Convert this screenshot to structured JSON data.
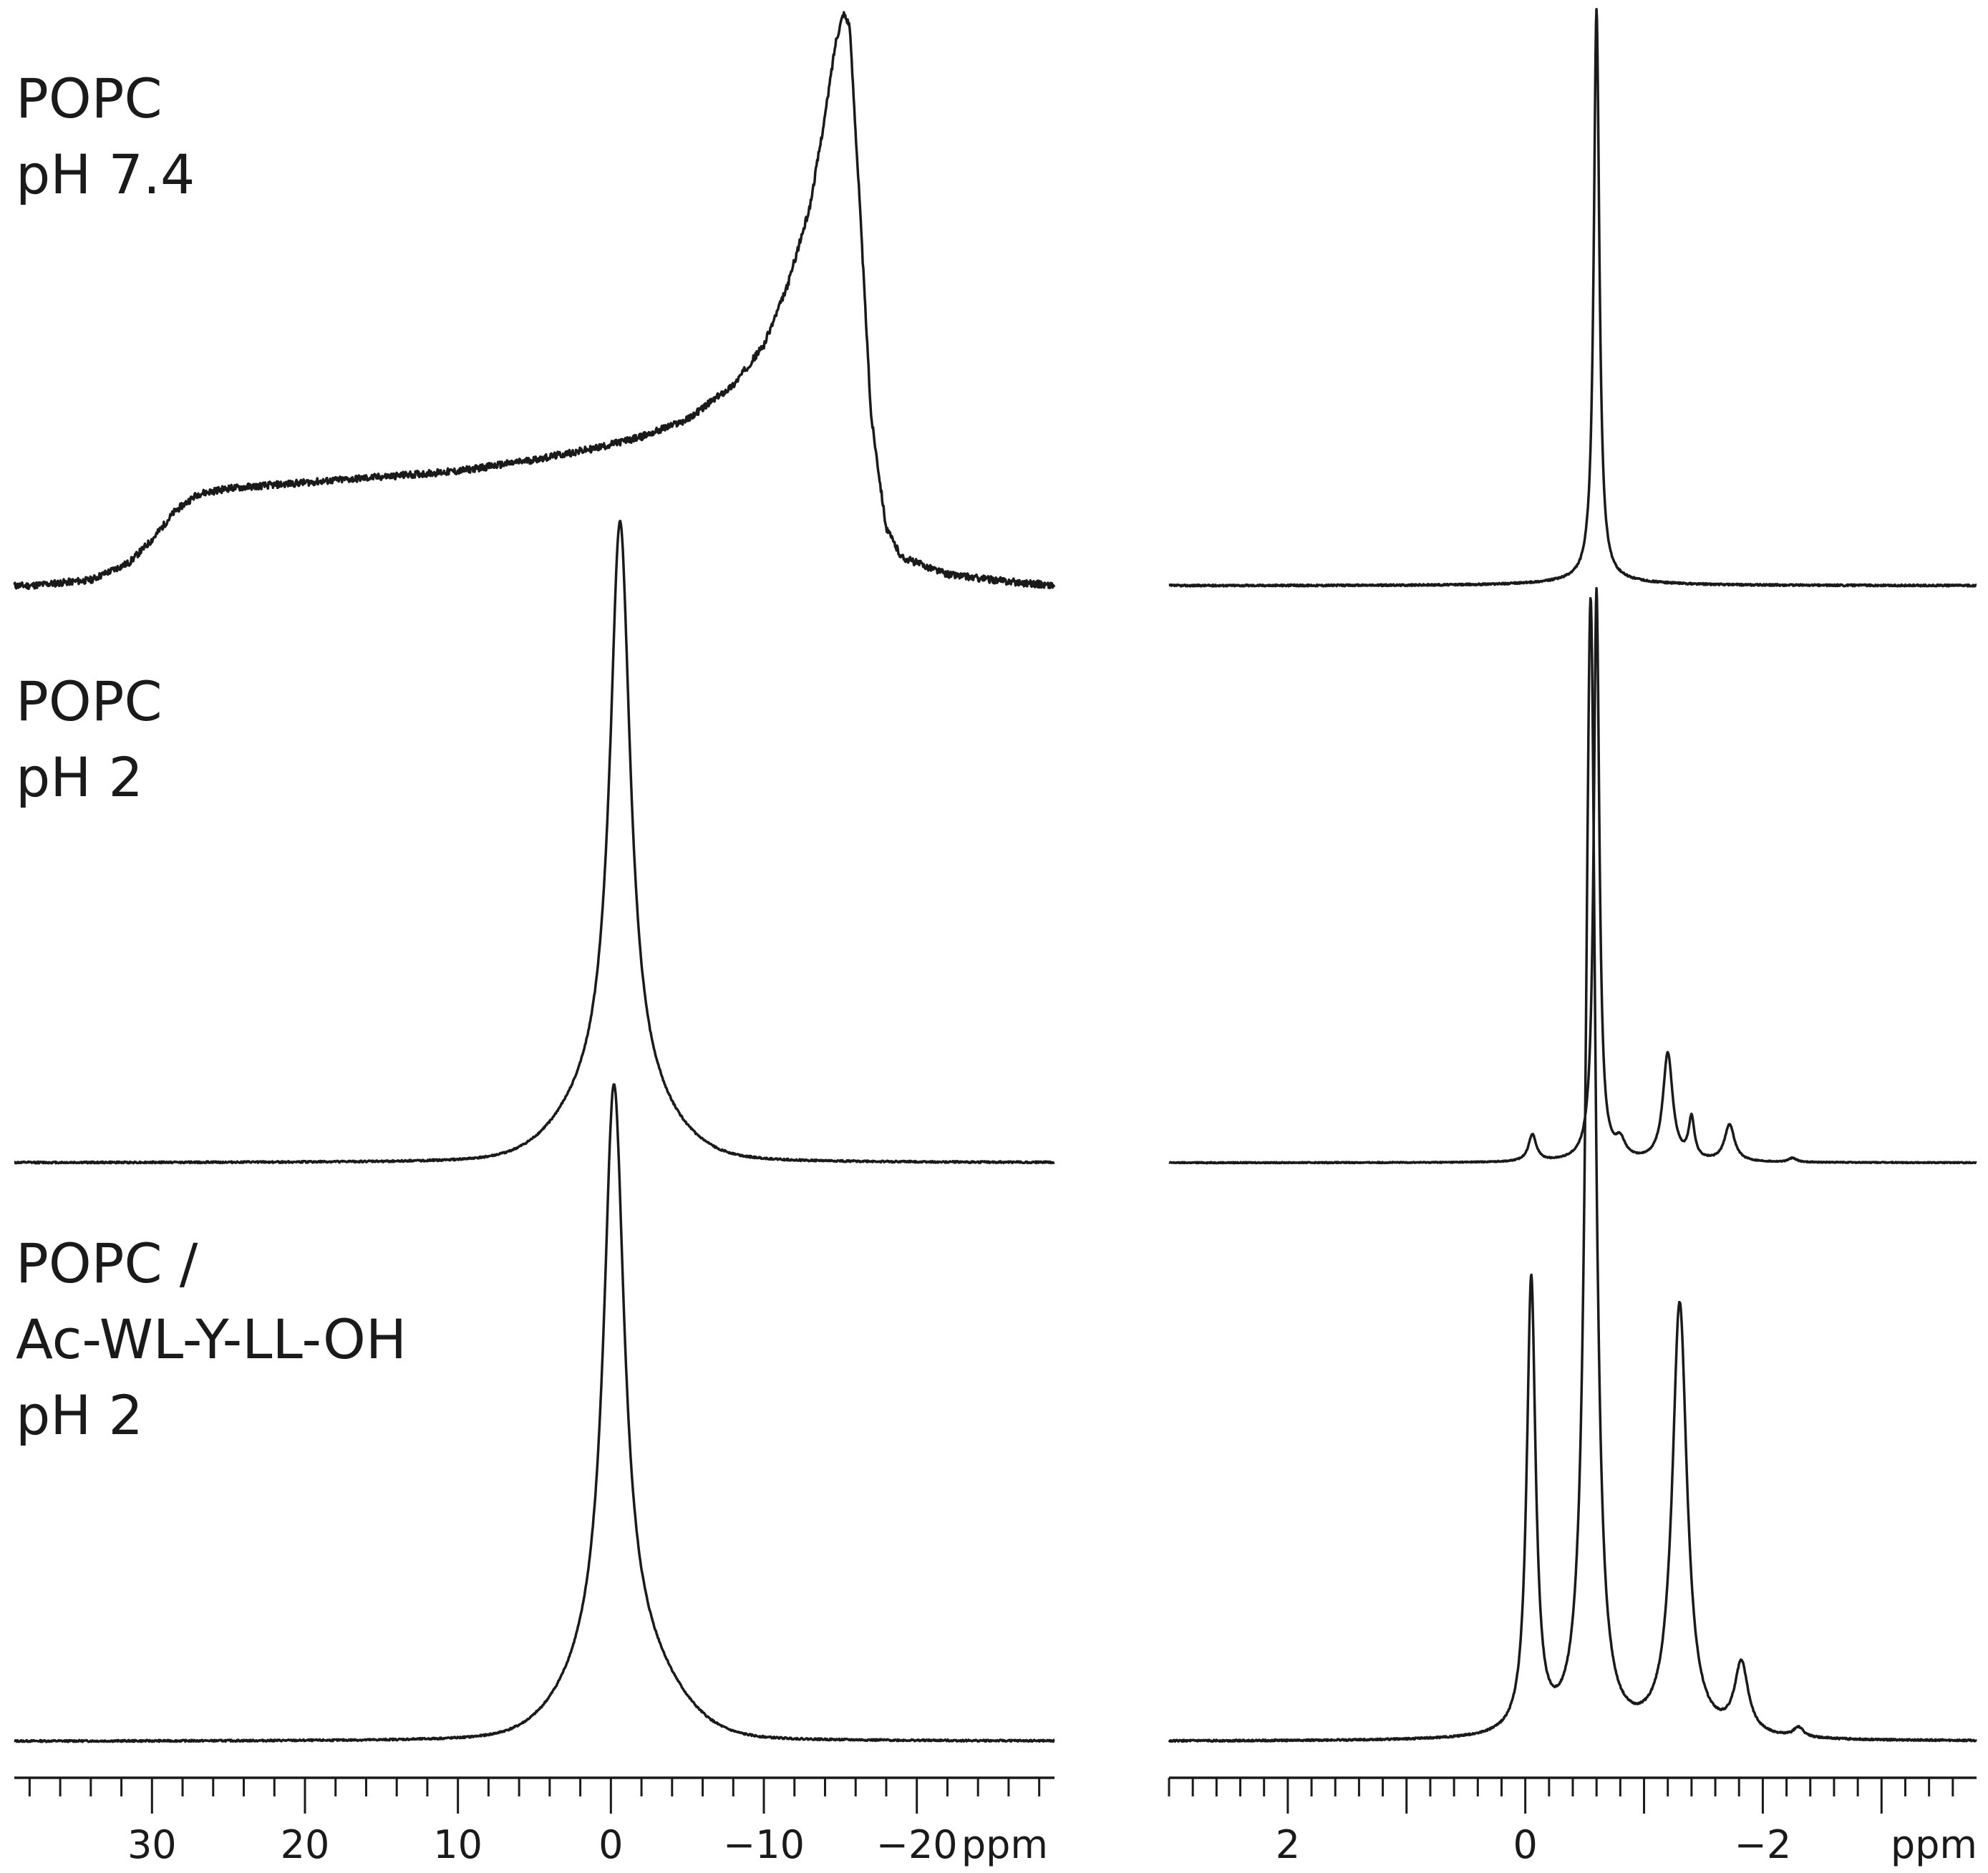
{
  "samples": [
    {
      "lines": [
        "POPC",
        "pH 7.4"
      ]
    },
    {
      "lines": [
        "POPC",
        "pH 2"
      ]
    },
    {
      "lines": [
        "POPC /",
        "Ac-WL-Y-LL-OH",
        "pH 2"
      ]
    }
  ],
  "chart_data": [
    {
      "type": "line",
      "title": "",
      "xlabel": "ppm",
      "ylabel": "",
      "xlim": [
        39,
        -29
      ],
      "reversed_x": true,
      "grid": false,
      "x_major_ticks": [
        30,
        20,
        10,
        0,
        -10,
        -20
      ],
      "x_tick_labels": [
        "30",
        "20",
        "10",
        "0",
        "−10",
        "−20"
      ],
      "x_minor_step": 2,
      "stacked": true,
      "series": [
        {
          "sample": 1,
          "lineshape": "static powder pattern",
          "x": [
            38,
            34,
            31.5,
            30,
            28.5,
            27,
            25,
            20,
            15,
            10,
            5,
            1,
            -2,
            -5,
            -8,
            -10,
            -11.5,
            -13,
            -14,
            -14.7,
            -15.2,
            -15.6,
            -16.2,
            -17,
            -18,
            -19,
            -22,
            -25,
            -29
          ],
          "y": [
            0.0,
            0.01,
            0.04,
            0.08,
            0.13,
            0.16,
            0.17,
            0.18,
            0.19,
            0.2,
            0.22,
            0.24,
            0.26,
            0.29,
            0.35,
            0.42,
            0.52,
            0.66,
            0.82,
            0.95,
            1.0,
            0.98,
            0.7,
            0.3,
            0.1,
            0.05,
            0.02,
            0.01,
            0.0
          ]
        },
        {
          "sample": 2,
          "lineshape": "isotropic line",
          "peaks": [
            {
              "ppm": -0.6,
              "height": 1.0,
              "width": 0.8,
              "shape": "lorentzian"
            },
            {
              "ppm": -0.3,
              "height": 0.12,
              "width": 3.0,
              "shape": "gaussian"
            }
          ]
        },
        {
          "sample": 3,
          "lineshape": "isotropic line",
          "peaks": [
            {
              "ppm": -0.2,
              "height": 1.0,
              "width": 0.8,
              "shape": "lorentzian"
            },
            {
              "ppm": -0.7,
              "height": 0.15,
              "width": 3.0,
              "shape": "gaussian"
            }
          ]
        }
      ]
    },
    {
      "type": "line",
      "title": "",
      "xlabel": "ppm",
      "ylabel": "",
      "xlim": [
        3.0,
        -3.8
      ],
      "reversed_x": true,
      "grid": false,
      "x_major_ticks": [
        2,
        1,
        0,
        -1,
        -2,
        -3
      ],
      "x_tick_labels": [
        "2",
        "0",
        "−2"
      ],
      "x_minor_step": 0.2,
      "stacked": true,
      "series": [
        {
          "sample": 1,
          "lineshape": "isotropic line",
          "peaks": [
            {
              "ppm": -0.6,
              "height": 1.0,
              "width": 0.028,
              "shape": "lorentzian"
            },
            {
              "ppm": -0.6,
              "height": 0.008,
              "width": 0.5,
              "shape": "lorentzian"
            }
          ]
        },
        {
          "sample": 2,
          "lineshape": "high-resolution multiplet",
          "peaks": [
            {
              "ppm": -0.6,
              "height": 1.7,
              "width": 0.028,
              "shape": "lorentzian"
            },
            {
              "ppm": -0.06,
              "height": 0.08,
              "width": 0.04,
              "shape": "lorentzian"
            },
            {
              "ppm": -0.8,
              "height": 0.05,
              "width": 0.05,
              "shape": "lorentzian"
            },
            {
              "ppm": -1.2,
              "height": 0.32,
              "width": 0.05,
              "shape": "lorentzian"
            },
            {
              "ppm": -1.4,
              "height": 0.12,
              "width": 0.03,
              "shape": "lorentzian"
            },
            {
              "ppm": -1.72,
              "height": 0.11,
              "width": 0.05,
              "shape": "lorentzian"
            },
            {
              "ppm": -2.25,
              "height": 0.012,
              "width": 0.04,
              "shape": "lorentzian"
            }
          ]
        },
        {
          "sample": 3,
          "lineshape": "high-resolution multiplet",
          "peaks": [
            {
              "ppm": -0.05,
              "height": 0.84,
              "width": 0.045,
              "shape": "lorentzian"
            },
            {
              "ppm": -0.55,
              "height": 2.1,
              "width": 0.05,
              "shape": "lorentzian"
            },
            {
              "ppm": -1.3,
              "height": 0.8,
              "width": 0.075,
              "shape": "lorentzian"
            },
            {
              "ppm": -1.82,
              "height": 0.13,
              "width": 0.07,
              "shape": "lorentzian"
            },
            {
              "ppm": -2.3,
              "height": 0.018,
              "width": 0.05,
              "shape": "lorentzian"
            }
          ]
        }
      ]
    }
  ]
}
